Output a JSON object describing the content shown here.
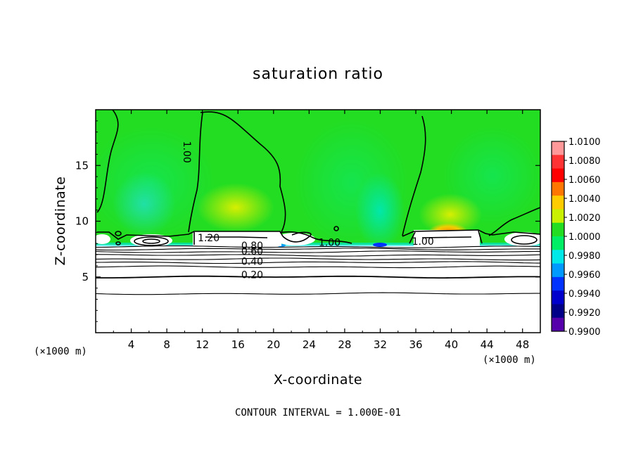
{
  "chart_data": {
    "type": "heatmap",
    "title": "saturation ratio",
    "xlabel": "X-coordinate",
    "ylabel": "Z-coordinate",
    "x_unit_left": "(×1000 m)",
    "x_unit_right": "(×1000 m)",
    "xlim": [
      0,
      50
    ],
    "ylim": [
      0,
      20
    ],
    "x_ticks": [
      {
        "value": 4,
        "label": "4"
      },
      {
        "value": 8,
        "label": "8"
      },
      {
        "value": 12,
        "label": "12"
      },
      {
        "value": 16,
        "label": "16"
      },
      {
        "value": 20,
        "label": "20"
      },
      {
        "value": 24,
        "label": "24"
      },
      {
        "value": 28,
        "label": "28"
      },
      {
        "value": 32,
        "label": "32"
      },
      {
        "value": 36,
        "label": "36"
      },
      {
        "value": 40,
        "label": "40"
      },
      {
        "value": 44,
        "label": "44"
      },
      {
        "value": 48,
        "label": "48"
      }
    ],
    "y_ticks": [
      {
        "value": 5,
        "label": "5"
      },
      {
        "value": 10,
        "label": "10"
      },
      {
        "value": 15,
        "label": "15"
      }
    ],
    "colorbar": {
      "levels": [
        "1.0100",
        "1.0080",
        "1.0060",
        "1.0040",
        "1.0020",
        "1.0000",
        "0.9980",
        "0.9960",
        "0.9940",
        "0.9920",
        "0.9900"
      ],
      "colors": [
        "#ff9999",
        "#ff3333",
        "#ff0000",
        "#ff7700",
        "#ffcc00",
        "#c8f000",
        "#22dd22",
        "#00ee66",
        "#00e8e8",
        "#0099ff",
        "#0033ff",
        "#0000cc",
        "#000088",
        "#5500aa"
      ]
    },
    "contour_labels": [
      {
        "text": "1.00",
        "x": 9.9,
        "z": 16.2,
        "rotate": 90
      },
      {
        "text": "1.20",
        "x": 12.7,
        "z": 8.2
      },
      {
        "text": "0.80",
        "x": 17.6,
        "z": 7.5
      },
      {
        "text": "0.60",
        "x": 17.6,
        "z": 7.0
      },
      {
        "text": "0.40",
        "x": 17.6,
        "z": 6.1
      },
      {
        "text": "0.20",
        "x": 17.6,
        "z": 4.9
      },
      {
        "text": "1.00",
        "x": 26.3,
        "z": 7.8
      },
      {
        "text": "1.00",
        "x": 36.8,
        "z": 7.9
      }
    ],
    "lower_contours_z": [
      3.5,
      5.0,
      5.9,
      6.3,
      6.6,
      6.95,
      7.25,
      7.5,
      7.7
    ],
    "contour_interval_text": "CONTOUR INTERVAL = 1.000E-01"
  }
}
